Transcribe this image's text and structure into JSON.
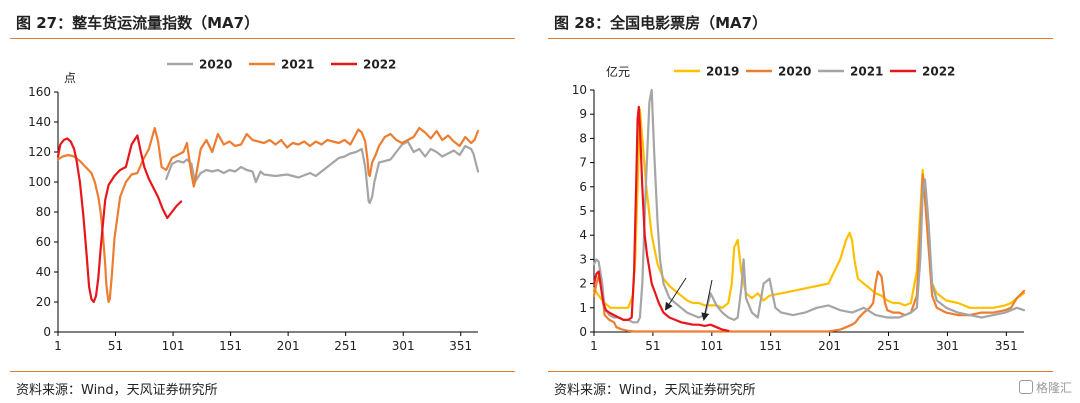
{
  "left": {
    "title": "图 27：整车货运流量指数（MA7）",
    "source": "资料来源：Wind，天风证券研究所"
  },
  "right": {
    "title": "图 28：全国电影票房（MA7）",
    "source": "资料来源：Wind，天风证券研究所"
  },
  "watermark": {
    "text": "格隆汇",
    "icon": "gelonghui-logo-icon"
  },
  "chart_data": [
    {
      "type": "line",
      "title": "整车货运流量指数（MA7）",
      "ylabel": "点",
      "xlim": [
        1,
        366
      ],
      "ylim": [
        0,
        160
      ],
      "xticks": [
        1,
        51,
        101,
        151,
        201,
        251,
        301,
        351
      ],
      "yticks": [
        0,
        20,
        40,
        60,
        80,
        100,
        120,
        140,
        160
      ],
      "grid": false,
      "legend_position": "top-center",
      "series": [
        {
          "name": "2020",
          "color": "#a5a5a5",
          "x": [
            95,
            100,
            105,
            110,
            113,
            117,
            120,
            125,
            130,
            135,
            140,
            145,
            150,
            155,
            160,
            165,
            170,
            173,
            177,
            180,
            190,
            200,
            210,
            220,
            225,
            230,
            235,
            240,
            245,
            250,
            255,
            260,
            265,
            268,
            270,
            271,
            272,
            274,
            276,
            280,
            290,
            300,
            305,
            310,
            315,
            320,
            325,
            330,
            335,
            340,
            345,
            350,
            355,
            360,
            362,
            366
          ],
          "y": [
            102,
            112,
            114,
            113,
            115,
            112,
            100,
            106,
            108,
            107,
            108,
            106,
            108,
            107,
            110,
            108,
            107,
            100,
            107,
            105,
            104,
            105,
            103,
            106,
            104,
            107,
            110,
            113,
            116,
            117,
            119,
            120,
            122,
            110,
            95,
            87,
            86,
            90,
            100,
            113,
            115,
            125,
            127,
            120,
            122,
            117,
            122,
            120,
            117,
            119,
            121,
            118,
            124,
            122,
            119,
            107
          ]
        },
        {
          "name": "2021",
          "color": "#ed7d31",
          "x": [
            1,
            5,
            10,
            15,
            20,
            25,
            30,
            33,
            36,
            38,
            40,
            42,
            43,
            44,
            45,
            46,
            48,
            50,
            55,
            60,
            65,
            70,
            75,
            80,
            85,
            88,
            91,
            95,
            100,
            105,
            110,
            113,
            117,
            119,
            120,
            125,
            130,
            135,
            140,
            145,
            150,
            155,
            160,
            165,
            170,
            175,
            180,
            185,
            190,
            195,
            200,
            205,
            210,
            215,
            220,
            225,
            230,
            235,
            240,
            245,
            250,
            255,
            260,
            262,
            265,
            268,
            270,
            271,
            272,
            274,
            277,
            280,
            285,
            290,
            295,
            300,
            305,
            310,
            315,
            320,
            325,
            330,
            335,
            340,
            345,
            350,
            355,
            360,
            363,
            366
          ],
          "y": [
            115,
            117,
            118,
            117,
            114,
            110,
            106,
            100,
            90,
            80,
            65,
            45,
            32,
            25,
            20,
            22,
            40,
            62,
            90,
            100,
            105,
            106,
            115,
            122,
            136,
            127,
            110,
            108,
            116,
            118,
            120,
            126,
            105,
            97,
            100,
            122,
            128,
            120,
            132,
            125,
            127,
            124,
            125,
            132,
            128,
            127,
            126,
            128,
            125,
            128,
            123,
            126,
            125,
            127,
            124,
            127,
            125,
            128,
            127,
            126,
            128,
            125,
            132,
            135,
            133,
            127,
            115,
            105,
            104,
            113,
            118,
            124,
            130,
            132,
            128,
            126,
            128,
            130,
            136,
            133,
            129,
            134,
            128,
            131,
            127,
            124,
            130,
            126,
            128,
            134
          ]
        },
        {
          "name": "2022",
          "color": "#e8161b",
          "x": [
            1,
            3,
            6,
            9,
            12,
            15,
            17,
            20,
            23,
            26,
            28,
            30,
            32,
            34,
            36,
            38,
            40,
            42,
            45,
            50,
            55,
            60,
            65,
            70,
            73,
            76,
            78,
            80,
            84,
            88,
            92,
            96,
            100,
            104,
            108
          ],
          "y": [
            117,
            125,
            128,
            129,
            127,
            122,
            115,
            100,
            78,
            50,
            30,
            22,
            20,
            24,
            36,
            55,
            72,
            88,
            98,
            104,
            108,
            110,
            125,
            131,
            120,
            110,
            106,
            102,
            96,
            90,
            82,
            76,
            80,
            84,
            87
          ]
        }
      ]
    },
    {
      "type": "line",
      "title": "全国电影票房（MA7）",
      "ylabel": "亿元",
      "xlim": [
        1,
        366
      ],
      "ylim": [
        0,
        10
      ],
      "xticks": [
        1,
        51,
        101,
        151,
        201,
        251,
        301,
        351
      ],
      "yticks": [
        0,
        1,
        2,
        3,
        4,
        5,
        6,
        7,
        8,
        9,
        10
      ],
      "grid": false,
      "legend_position": "top-center",
      "annotations": [
        "arrow",
        "arrow"
      ],
      "series": [
        {
          "name": "2019",
          "color": "#ffc000",
          "x": [
            1,
            5,
            10,
            15,
            20,
            25,
            30,
            34,
            36,
            38,
            40,
            42,
            45,
            50,
            55,
            60,
            65,
            70,
            75,
            80,
            85,
            90,
            95,
            100,
            105,
            110,
            115,
            118,
            120,
            123,
            126,
            130,
            135,
            140,
            145,
            150,
            160,
            170,
            180,
            190,
            200,
            205,
            210,
            215,
            218,
            220,
            222,
            225,
            230,
            235,
            240,
            245,
            250,
            255,
            260,
            265,
            270,
            275,
            278,
            280,
            282,
            285,
            288,
            292,
            300,
            310,
            320,
            330,
            340,
            350,
            355,
            360,
            366
          ],
          "y": [
            1.8,
            1.5,
            1.2,
            1.0,
            1.0,
            1.0,
            1.0,
            1.5,
            3.0,
            6.0,
            9.2,
            8.0,
            6.2,
            4.0,
            2.8,
            2.2,
            1.9,
            1.7,
            1.5,
            1.3,
            1.2,
            1.2,
            1.1,
            1.1,
            1.1,
            1.0,
            1.2,
            2.0,
            3.5,
            3.8,
            2.5,
            1.6,
            1.4,
            1.6,
            1.3,
            1.5,
            1.6,
            1.7,
            1.8,
            1.9,
            2.0,
            2.5,
            3.0,
            3.8,
            4.1,
            3.8,
            3.0,
            2.2,
            2.0,
            1.8,
            1.6,
            1.5,
            1.3,
            1.2,
            1.2,
            1.1,
            1.2,
            2.5,
            5.0,
            6.7,
            5.5,
            3.5,
            2.0,
            1.6,
            1.3,
            1.2,
            1.0,
            1.0,
            1.0,
            1.1,
            1.2,
            1.4,
            1.6
          ]
        },
        {
          "name": "2020",
          "color": "#ed7d31",
          "x": [
            1,
            3,
            5,
            8,
            10,
            14,
            18,
            20,
            25,
            30,
            35,
            40,
            50,
            60,
            80,
            100,
            120,
            150,
            180,
            200,
            210,
            215,
            220,
            223,
            226,
            230,
            235,
            238,
            240,
            242,
            245,
            248,
            250,
            255,
            260,
            265,
            270,
            275,
            278,
            280,
            282,
            285,
            288,
            292,
            300,
            310,
            320,
            330,
            340,
            350,
            355,
            360,
            366
          ],
          "y": [
            1.5,
            2.0,
            2.3,
            1.7,
            0.7,
            0.5,
            0.4,
            0.2,
            0.1,
            0.05,
            0.02,
            0.02,
            0.02,
            0.02,
            0.02,
            0.02,
            0.02,
            0.02,
            0.02,
            0.02,
            0.1,
            0.2,
            0.3,
            0.4,
            0.6,
            0.8,
            1.0,
            1.2,
            2.0,
            2.5,
            2.3,
            1.2,
            0.9,
            0.8,
            0.8,
            0.7,
            0.8,
            1.5,
            4.0,
            6.5,
            5.5,
            3.5,
            1.5,
            1.0,
            0.8,
            0.7,
            0.7,
            0.8,
            0.8,
            0.9,
            1.0,
            1.4,
            1.7
          ]
        },
        {
          "name": "2021",
          "color": "#a5a5a5",
          "x": [
            1,
            3,
            5,
            8,
            10,
            14,
            18,
            22,
            26,
            30,
            34,
            38,
            40,
            42,
            45,
            48,
            50,
            52,
            55,
            57,
            60,
            65,
            70,
            75,
            80,
            85,
            90,
            95,
            100,
            105,
            110,
            115,
            120,
            123,
            126,
            128,
            130,
            135,
            140,
            145,
            150,
            155,
            160,
            170,
            180,
            190,
            200,
            210,
            220,
            230,
            240,
            250,
            260,
            270,
            275,
            278,
            280,
            282,
            285,
            288,
            292,
            300,
            310,
            320,
            330,
            340,
            350,
            355,
            360,
            366
          ],
          "y": [
            2.8,
            3.0,
            2.9,
            2.0,
            1.0,
            0.7,
            0.6,
            0.6,
            0.5,
            0.5,
            0.4,
            0.4,
            0.6,
            2.0,
            6.0,
            9.5,
            10.0,
            7.5,
            4.5,
            3.0,
            2.0,
            1.4,
            1.2,
            1.0,
            0.8,
            0.7,
            0.6,
            0.7,
            1.6,
            1.1,
            0.8,
            0.6,
            0.5,
            0.6,
            1.8,
            3.0,
            1.4,
            0.8,
            0.6,
            2.0,
            2.2,
            1.0,
            0.8,
            0.7,
            0.8,
            1.0,
            1.1,
            0.9,
            0.8,
            1.0,
            0.7,
            0.6,
            0.6,
            0.8,
            1.0,
            3.0,
            5.8,
            6.3,
            4.5,
            2.0,
            1.3,
            1.0,
            0.8,
            0.7,
            0.6,
            0.7,
            0.8,
            0.9,
            1.0,
            0.9
          ]
        },
        {
          "name": "2022",
          "color": "#e8161b",
          "x": [
            1,
            3,
            5,
            7,
            9,
            11,
            14,
            18,
            22,
            26,
            30,
            33,
            35,
            37,
            38,
            39,
            40,
            42,
            44,
            46,
            48,
            50,
            53,
            56,
            60,
            65,
            70,
            75,
            80,
            85,
            90,
            95,
            100,
            105,
            110,
            115
          ],
          "y": [
            2.0,
            2.4,
            2.5,
            1.8,
            1.2,
            0.9,
            0.8,
            0.7,
            0.6,
            0.5,
            0.5,
            0.6,
            2.5,
            6.5,
            8.8,
            9.3,
            8.5,
            6.0,
            4.0,
            3.2,
            2.6,
            2.0,
            1.6,
            1.2,
            0.8,
            0.6,
            0.5,
            0.4,
            0.35,
            0.3,
            0.3,
            0.25,
            0.3,
            0.2,
            0.1,
            0.05
          ]
        }
      ]
    }
  ]
}
